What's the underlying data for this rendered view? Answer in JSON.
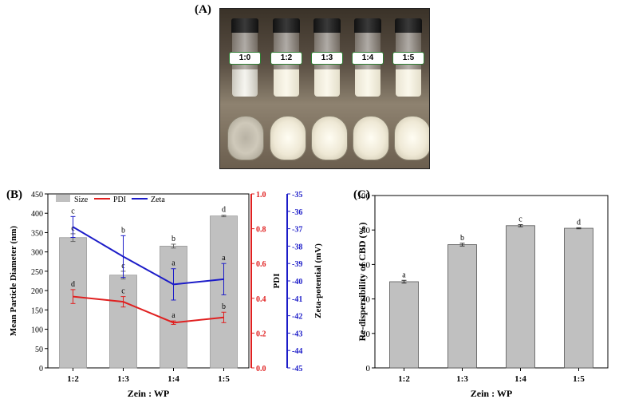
{
  "panels": {
    "a": "(A)",
    "b": "(B)",
    "c": "(C)"
  },
  "photo": {
    "vial_labels": [
      "1:0",
      "1:2",
      "1:3",
      "1:4",
      "1:5"
    ]
  },
  "chart_data": [
    {
      "type": "bar",
      "panel": "(B)",
      "categories": [
        "1:2",
        "1:3",
        "1:4",
        "1:5"
      ],
      "xlabel": "Zein : WP",
      "legend": [
        "Size",
        "PDI",
        "Zeta"
      ],
      "legend_position": "top-left",
      "colors": {
        "size": "#c0c0c0",
        "pdi": "#e02020",
        "zeta": "#1c1cc8"
      },
      "axes": {
        "size": {
          "label": "Mean Particle Diameter (nm)",
          "range": [
            0,
            450
          ],
          "ticks": [
            "0",
            "50",
            "100",
            "150",
            "200",
            "250",
            "300",
            "350",
            "400",
            "450"
          ]
        },
        "pdi": {
          "label": "PDI",
          "range": [
            0,
            1.0
          ],
          "ticks": [
            "0.0",
            "0.2",
            "0.4",
            "0.6",
            "0.8",
            "1.0"
          ]
        },
        "zeta": {
          "label": "Zeta-potential (mV)",
          "range": [
            -45,
            -35
          ],
          "ticks": [
            "-35",
            "-36",
            "-37",
            "-38",
            "-39",
            "-40",
            "-41",
            "-42",
            "-43",
            "-44",
            "-45"
          ]
        }
      },
      "series": [
        {
          "name": "Size",
          "kind": "bar",
          "values": [
            337,
            240,
            315,
            393
          ],
          "errors": [
            10,
            10,
            5,
            2
          ],
          "letters": [
            "c",
            "c",
            "b",
            "d"
          ]
        },
        {
          "name": "PDI",
          "kind": "line",
          "values": [
            0.41,
            0.38,
            0.26,
            0.29
          ],
          "errors": [
            0.04,
            0.03,
            0.01,
            0.03
          ],
          "letters": [
            "d",
            "c",
            "a",
            "b"
          ]
        },
        {
          "name": "Zeta",
          "kind": "line",
          "values": [
            -36.9,
            -38.6,
            -40.2,
            -39.9
          ],
          "errors": [
            0.6,
            1.2,
            0.9,
            0.9
          ],
          "letters": [
            "c",
            "b",
            "a",
            "a"
          ]
        }
      ]
    },
    {
      "type": "bar",
      "panel": "(C)",
      "categories": [
        "1:2",
        "1:3",
        "1:4",
        "1:5"
      ],
      "xlabel": "Zein : WP",
      "ylabel": "Re-dispersibility of CBD (%)",
      "ylim": [
        0,
        100
      ],
      "yticks": [
        "0",
        "20",
        "40",
        "60",
        "80",
        "100"
      ],
      "values": [
        50,
        71.5,
        82.5,
        81
      ],
      "errors": [
        0.8,
        0.8,
        0.6,
        0.3
      ],
      "letters": [
        "a",
        "b",
        "c",
        "d"
      ],
      "color": "#c0c0c0"
    }
  ]
}
